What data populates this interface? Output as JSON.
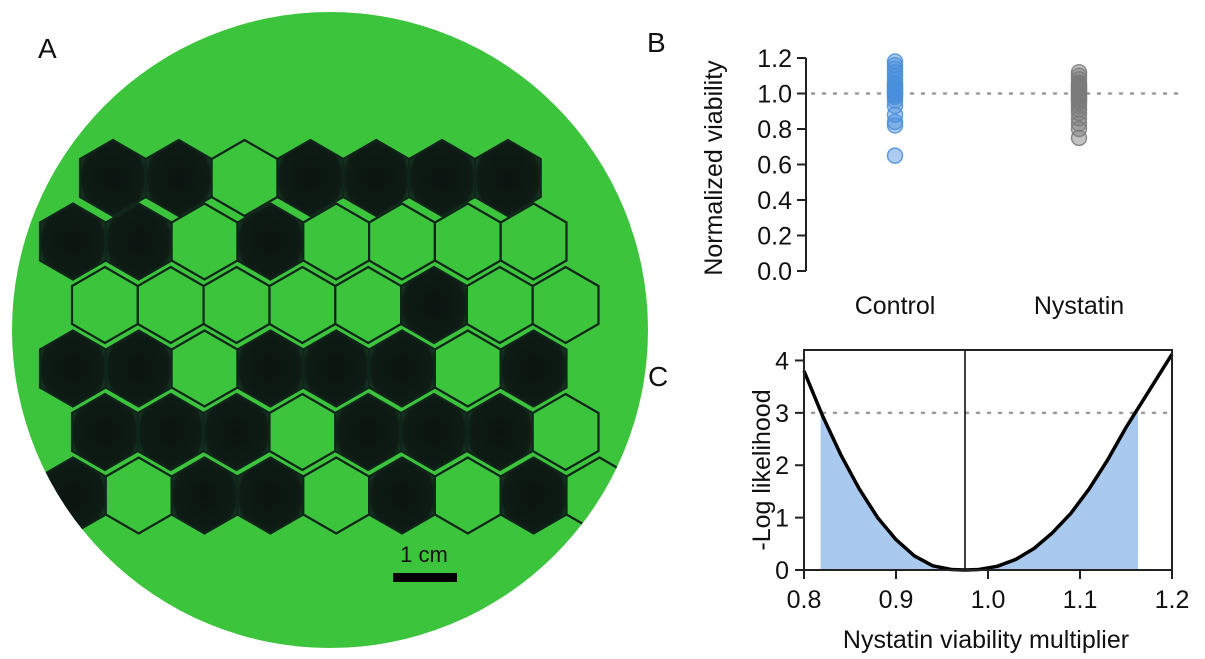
{
  "panels": {
    "a": {
      "letter": "A",
      "scale_bar_label": "1 cm"
    },
    "b": {
      "letter": "B"
    },
    "c": {
      "letter": "C"
    }
  },
  "colors": {
    "plate_green": "#3cc43c",
    "well_dark": "#0c1712",
    "control_points": "#4a8fdb",
    "nystatin_points": "#7a7a7a",
    "ci_fill": "#aac9ee",
    "curve": "#000000",
    "reference_line": "#9a9a9a"
  },
  "plate_wells": {
    "rows": [
      [
        "dark",
        "dark",
        "green",
        "dark",
        "dark",
        "dark",
        "dark"
      ],
      [
        "dark",
        "dark",
        "green",
        "dark",
        "green",
        "green",
        "green",
        "green"
      ],
      [
        "green",
        "green",
        "green",
        "green",
        "green",
        "dark",
        "green",
        "green"
      ],
      [
        "dark",
        "dark",
        "green",
        "dark",
        "dark",
        "dark",
        "green",
        "dark"
      ],
      [
        "dark",
        "dark",
        "dark",
        "green",
        "dark",
        "dark",
        "dark",
        "green"
      ],
      [
        "dark",
        "green",
        "dark",
        "dark",
        "green",
        "dark",
        "green",
        "dark",
        "green"
      ]
    ]
  },
  "chart_data": [
    {
      "panel": "B",
      "type": "scatter",
      "ylabel": "Normalized viability",
      "categories": [
        "Control",
        "Nystatin"
      ],
      "ylim": [
        0,
        1.2
      ],
      "yticks": [
        "0.0",
        "0.2",
        "0.4",
        "0.6",
        "0.8",
        "1.0",
        "1.2"
      ],
      "reference_line": {
        "y": 1.0,
        "style": "dotted"
      },
      "series": [
        {
          "category": "Control",
          "color": "#4a8fdb",
          "values": [
            1.18,
            1.16,
            1.14,
            1.12,
            1.1,
            1.08,
            1.06,
            1.05,
            1.04,
            1.03,
            1.02,
            1.01,
            1.0,
            0.99,
            0.98,
            0.96,
            0.93,
            0.88,
            0.84,
            0.82,
            0.65
          ]
        },
        {
          "category": "Nystatin",
          "color": "#7a7a7a",
          "values": [
            1.12,
            1.1,
            1.08,
            1.06,
            1.05,
            1.04,
            1.03,
            1.02,
            1.01,
            1.0,
            0.99,
            0.98,
            0.97,
            0.96,
            0.95,
            0.93,
            0.91,
            0.89,
            0.86,
            0.83,
            0.8,
            0.75
          ]
        }
      ]
    },
    {
      "panel": "C",
      "type": "line",
      "xlabel": "Nystatin viability multiplier",
      "ylabel": "-Log likelihood",
      "xlim": [
        0.8,
        1.2
      ],
      "ylim": [
        0,
        4.2
      ],
      "xticks": [
        "0.8",
        "0.9",
        "1.0",
        "1.1",
        "1.2"
      ],
      "yticks": [
        "0",
        "1",
        "2",
        "3",
        "4"
      ],
      "minimum_x": 0.975,
      "threshold": {
        "y": 3,
        "style": "dotted"
      },
      "confidence_interval": [
        0.818,
        1.163
      ],
      "curve": {
        "x": [
          0.8,
          0.82,
          0.84,
          0.86,
          0.88,
          0.9,
          0.92,
          0.94,
          0.96,
          0.975,
          0.99,
          1.01,
          1.03,
          1.05,
          1.07,
          1.09,
          1.11,
          1.13,
          1.15,
          1.17,
          1.2
        ],
        "y": [
          3.8,
          2.95,
          2.2,
          1.55,
          1.0,
          0.58,
          0.27,
          0.08,
          0.01,
          0.0,
          0.01,
          0.07,
          0.2,
          0.41,
          0.71,
          1.08,
          1.55,
          2.1,
          2.72,
          3.28,
          4.12
        ]
      }
    }
  ]
}
